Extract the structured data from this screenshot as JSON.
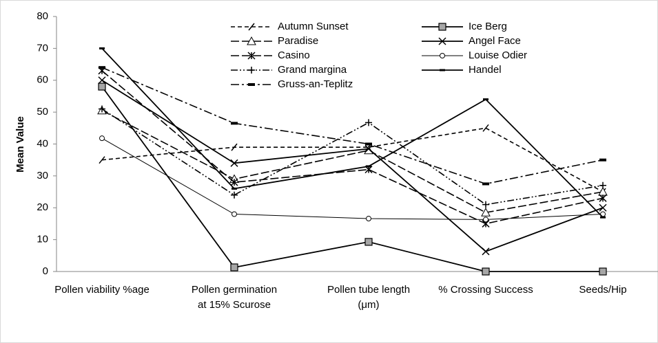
{
  "chart_data": {
    "type": "line",
    "y_label": "Mean Value",
    "categories": [
      [
        "Pollen viability %age"
      ],
      [
        "Pollen germination",
        "at 15% Scurose"
      ],
      [
        "Pollen tube length",
        "(μm)"
      ],
      [
        "% Crossing Success"
      ],
      [
        "Seeds/Hip"
      ]
    ],
    "ylim": [
      0,
      80
    ],
    "yticks": [
      0,
      10,
      20,
      30,
      40,
      50,
      60,
      70,
      80
    ],
    "grid": false,
    "legend": "top",
    "series": [
      {
        "name": "Autumn Sunset",
        "color": "#000",
        "style": "dashed",
        "marker": "slash",
        "values": [
          35,
          39,
          39,
          45,
          25
        ]
      },
      {
        "name": "Ice Berg",
        "color": "#000",
        "style": "solid",
        "marker": "square",
        "values": [
          58,
          1.3,
          9.3,
          0,
          0
        ]
      },
      {
        "name": "Paradise",
        "color": "#000",
        "style": "long-dash",
        "marker": "triangle",
        "values": [
          50.5,
          29,
          38,
          18.5,
          25
        ]
      },
      {
        "name": "Angel Face",
        "color": "#000",
        "style": "solid",
        "marker": "x",
        "values": [
          60,
          34,
          38.5,
          6.3,
          20
        ]
      },
      {
        "name": "Casino",
        "color": "#000",
        "style": "long-dash",
        "marker": "asterisk",
        "values": [
          63,
          28,
          32,
          15,
          23
        ]
      },
      {
        "name": "Louise Odier",
        "color": "#000",
        "style": "thin",
        "marker": "circle",
        "values": [
          41.8,
          18,
          16.6,
          16.3,
          18
        ]
      },
      {
        "name": "Grand margina",
        "color": "#000",
        "style": "dash-dot-dot",
        "marker": "plus",
        "values": [
          51,
          24,
          46.7,
          21,
          27
        ]
      },
      {
        "name": "Handel",
        "color": "#000",
        "style": "solid",
        "marker": "dash",
        "values": [
          70,
          26,
          33,
          54,
          17
        ]
      },
      {
        "name": "Gruss-an-Teplitz",
        "color": "#000",
        "style": "dash-dot",
        "marker": "bar",
        "values": [
          64,
          46.5,
          40,
          27.5,
          35
        ]
      }
    ]
  }
}
